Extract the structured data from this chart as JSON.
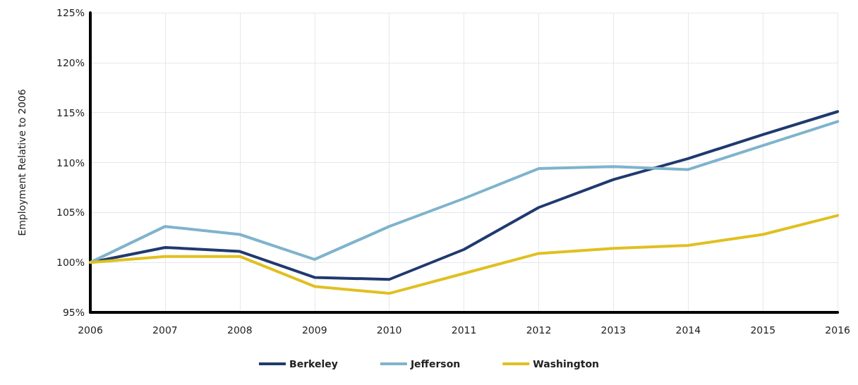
{
  "chart_data": {
    "type": "line",
    "ylabel": "Employment Relative to 2006",
    "categories": [
      "2006",
      "2007",
      "2008",
      "2009",
      "2010",
      "2011",
      "2012",
      "2013",
      "2014",
      "2015",
      "2016"
    ],
    "series": [
      {
        "name": "Berkeley",
        "color": "#1f3a6e",
        "values": [
          100,
          101.5,
          101.1,
          98.5,
          98.3,
          101.3,
          105.5,
          108.3,
          110.4,
          112.8,
          115.1
        ]
      },
      {
        "name": "Jefferson",
        "color": "#7fb3cc",
        "values": [
          100,
          103.6,
          102.8,
          100.3,
          103.6,
          106.4,
          109.4,
          109.6,
          109.3,
          111.7,
          114.1
        ]
      },
      {
        "name": "Washington",
        "color": "#e0c020",
        "values": [
          100,
          100.6,
          100.6,
          97.6,
          96.9,
          98.9,
          100.9,
          101.4,
          101.7,
          102.8,
          104.7
        ]
      }
    ],
    "ylim": [
      95,
      125
    ],
    "yticks": [
      {
        "value": 95,
        "label": "95%"
      },
      {
        "value": 100,
        "label": "100%"
      },
      {
        "value": 105,
        "label": "105%"
      },
      {
        "value": 110,
        "label": "110%"
      },
      {
        "value": 115,
        "label": "115%"
      },
      {
        "value": 120,
        "label": "120%"
      },
      {
        "value": 125,
        "label": "125%"
      }
    ],
    "grid": true,
    "legend": "bottom",
    "marker": "none",
    "line_style": "solid"
  }
}
